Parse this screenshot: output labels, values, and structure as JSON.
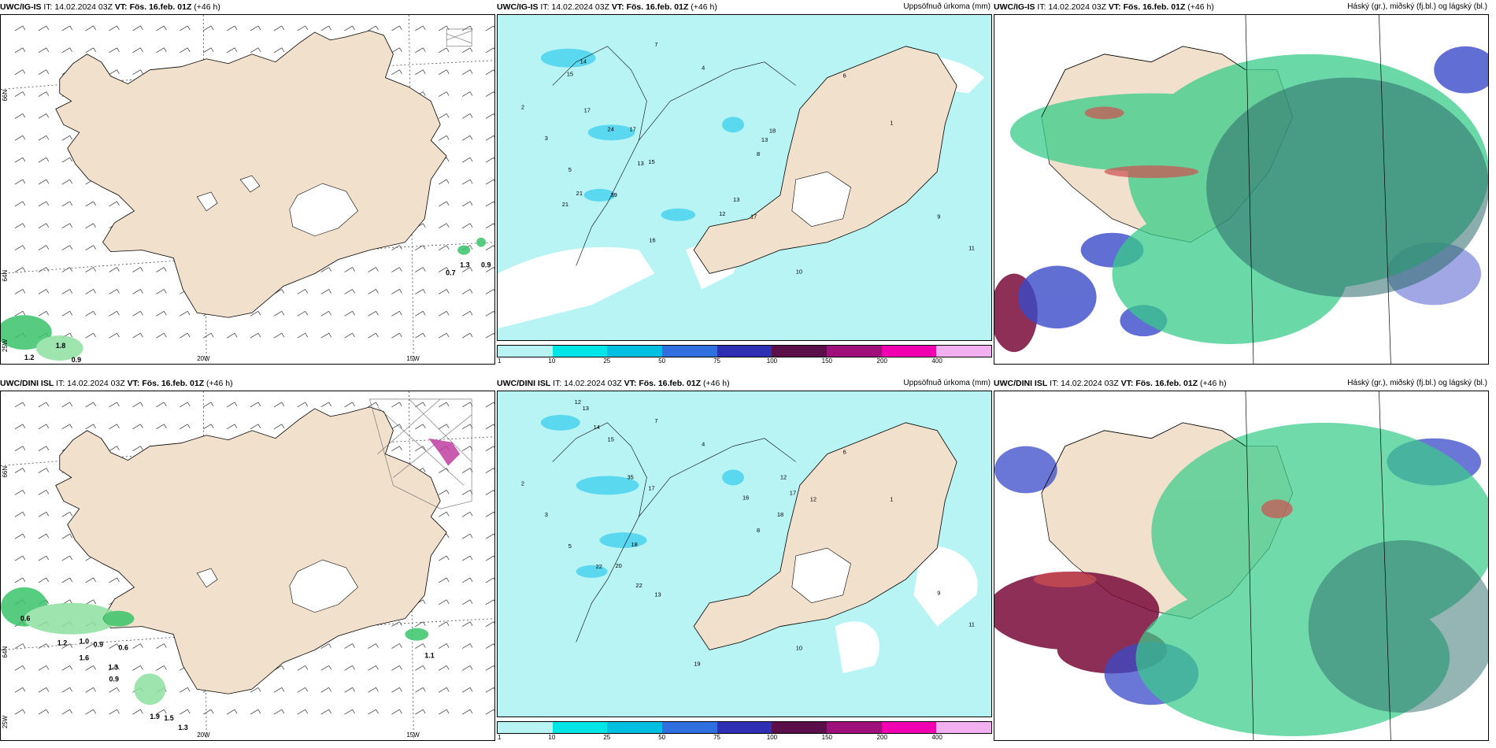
{
  "panels": [
    {
      "model": "UWC/IG-IS",
      "it_label": "IT: 14.02.2024 03Z",
      "vt_label": "VT: Fös. 16.feb. 01Z",
      "offset": "(+46 h)",
      "right_title": "",
      "type": "wind",
      "lon_labels": [
        "20W",
        "15W"
      ],
      "lat_labels": [
        "66N",
        "64N",
        "25W"
      ],
      "values": [
        "1.3",
        "0.9",
        "0.7",
        "1.2",
        "1.8",
        "0.9"
      ]
    },
    {
      "model": "UWC/IG-IS",
      "it_label": "IT: 14.02.2024 03Z",
      "vt_label": "VT: Fös. 16.feb. 01Z",
      "offset": "(+46 h)",
      "right_title": "Uppsöfnuð úrkoma (mm)",
      "type": "precip",
      "values": [
        "15",
        "14",
        "17",
        "24",
        "17",
        "13",
        "15",
        "39",
        "21",
        "21",
        "16",
        "12",
        "13",
        "17",
        "18",
        "13",
        "2",
        "3",
        "5",
        "7",
        "4",
        "8",
        "6",
        "1",
        "9",
        "11",
        "10"
      ]
    },
    {
      "model": "UWC/IG-IS",
      "it_label": "IT: 14.02.2024 03Z",
      "vt_label": "VT: Fös. 16.feb. 01Z",
      "offset": "(+46 h)",
      "right_title": "Háský (gr.), miðský (fj.bl.) og lágský (bl.)",
      "type": "cloud"
    },
    {
      "model": "UWC/DINI ISL",
      "it_label": "IT: 14.02.2024 03Z",
      "vt_label": "VT: Fös. 16.feb. 01Z",
      "offset": "(+46 h)",
      "right_title": "",
      "type": "wind",
      "lon_labels": [
        "20W",
        "15W"
      ],
      "lat_labels": [
        "66N",
        "64N",
        "25W"
      ],
      "values": [
        "0.6",
        "1.2",
        "1.0",
        "0.9",
        "0.6",
        "1.6",
        "1.3",
        "0.9",
        "1.9",
        "1.5",
        "1.3",
        "1.1"
      ]
    },
    {
      "model": "UWC/DINI ISL",
      "it_label": "IT: 14.02.2024 03Z",
      "vt_label": "VT: Fös. 16.feb. 01Z",
      "offset": "(+46 h)",
      "right_title": "Uppsöfnuð úrkoma (mm)",
      "type": "precip",
      "values": [
        "12",
        "13",
        "14",
        "15",
        "35",
        "17",
        "18",
        "22",
        "20",
        "22",
        "13",
        "12",
        "16",
        "18",
        "17",
        "12",
        "2",
        "3",
        "5",
        "7",
        "4",
        "8",
        "6",
        "1",
        "9",
        "11",
        "10",
        "19"
      ]
    },
    {
      "model": "UWC/DINI ISL",
      "it_label": "IT: 14.02.2024 03Z",
      "vt_label": "VT: Fös. 16.feb. 01Z",
      "offset": "(+46 h)",
      "right_title": "Háský (gr.), miðský (fj.bl.) og lágský (bl.)",
      "type": "cloud"
    }
  ],
  "colorbar": {
    "labels": [
      "1",
      "10",
      "25",
      "50",
      "75",
      "100",
      "150",
      "200",
      "400"
    ],
    "colors": [
      "#b8f4f4",
      "#00e5e5",
      "#00bfe0",
      "#2f6fe0",
      "#2e2fb4",
      "#5a0e4a",
      "#a0107a",
      "#f000b0",
      "#f2b0f0"
    ]
  },
  "colors": {
    "land": "#f0e0cc",
    "sea_precip": "#b8f4f4",
    "precip_mid": "#5ad8f0",
    "cloud_high": "#3acc8a",
    "cloud_mid": "#3a4ac8",
    "cloud_low": "#7a0a3a"
  }
}
